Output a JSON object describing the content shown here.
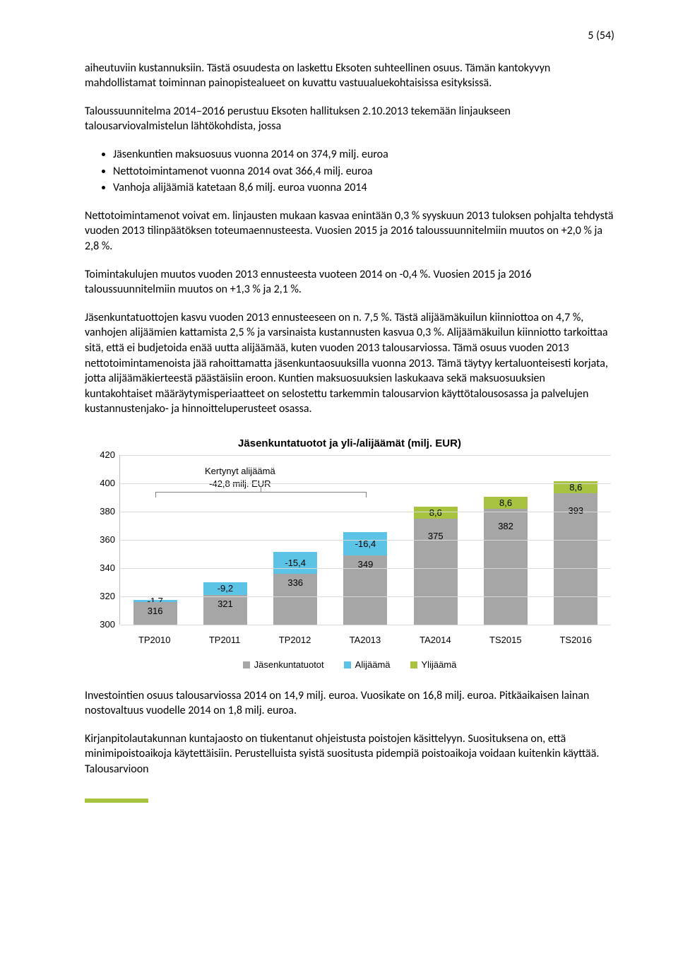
{
  "pageNumber": "5 (54)",
  "paragraphs": {
    "p1": "aiheutuviin kustannuksiin. Tästä osuudesta on laskettu Eksoten suhteellinen osuus. Tämän kantokyvyn mahdollistamat toiminnan painopistealueet on kuvattu vastuualuekohtaisissa esityksissä.",
    "p2": "Taloussuunnitelma 2014–2016 perustuu Eksoten hallituksen 2.10.2013 tekemään linjaukseen talousarviovalmistelun lähtökohdista, jossa",
    "p3": "Nettotoimintamenot voivat em. linjausten mukaan kasvaa enintään 0,3 % syyskuun 2013 tuloksen pohjalta tehdystä vuoden 2013 tilinpäätöksen toteumaennusteesta. Vuosien 2015 ja 2016 taloussuunnitelmiin muutos on +2,0 % ja 2,8 %.",
    "p4": "Toimintakulujen muutos vuoden 2013 ennusteesta vuoteen 2014 on -0,4 %. Vuosien 2015 ja 2016 taloussuunnitelmiin muutos on +1,3 % ja 2,1 %.",
    "p5": "Jäsenkuntatuottojen kasvu vuoden 2013 ennusteeseen on n. 7,5 %. Tästä alijäämäkuilun kiinniottoa on 4,7 %, vanhojen alijäämien kattamista 2,5 % ja varsinaista kustannusten kasvua 0,3 %. Alijäämäkuilun kiinniotto tarkoittaa sitä, että ei budjetoida enää uutta alijäämää, kuten vuoden 2013 talousarviossa. Tämä osuus vuoden 2013 nettotoimintamenoista jää rahoittamatta jäsenkuntaosuuksilla vuonna 2013. Tämä täytyy kertaluonteisesti korjata, jotta alijäämäkierteestä päästäisiin eroon. Kuntien maksuosuuksien laskukaava sekä maksuosuuksien kuntakohtaiset määräytymisperiaatteet on selostettu tarkemmin talousarvion käyttötalousosassa ja palvelujen kustannustenjako- ja hinnoitteluperusteet osassa.",
    "p6": "Investointien osuus talousarviossa 2014 on 14,9 milj. euroa. Vuosikate on 16,8 milj. euroa. Pitkäaikaisen lainan nostovaltuus vuodelle 2014 on 1,8 milj. euroa.",
    "p7": "Kirjanpitolautakunnan kuntajaosto on tiukentanut ohjeistusta poistojen käsittelyyn. Suosituksena on, että minimipoistoaikoja käytettäisiin. Perustelluista syistä suositusta pidempiä poistoaikoja voidaan kuitenkin käyttää. Talousarvioon"
  },
  "bullets": {
    "b1": "Jäsenkuntien maksuosuus vuonna 2014 on 374,9 milj. euroa",
    "b2": "Nettotoimintamenot vuonna 2014 ovat 366,4 milj. euroa",
    "b3": "Vanhoja alijäämiä katetaan 8,6 milj. euroa vuonna 2014"
  },
  "chart": {
    "title": "Jäsenkuntatuotot ja yli-/alijäämät (milj. EUR)",
    "ylim": [
      300,
      420
    ],
    "yticks": [
      300,
      320,
      340,
      360,
      380,
      400,
      420
    ],
    "categories": [
      "TP2010",
      "TP2011",
      "TP2012",
      "TA2013",
      "TA2014",
      "TS2015",
      "TS2016"
    ],
    "colors": {
      "tuotot": "#a6a6a6",
      "alijaama": "#5bc3e5",
      "ylijaama": "#a7c33f",
      "grid": "#d9d9d9",
      "axis": "#bfbfbf",
      "background": "#ffffff"
    },
    "annotation": {
      "l1": "Kertynyt alijäämä",
      "l2": "-42,8 milj. EUR"
    },
    "series": [
      {
        "tuotot": 316,
        "tuotot_label": "316",
        "overlay": -1.7,
        "overlay_label": "-1,7",
        "overlay_color": "#5bc3e5"
      },
      {
        "tuotot": 321,
        "tuotot_label": "321",
        "overlay": -9.2,
        "overlay_label": "-9,2",
        "overlay_color": "#5bc3e5"
      },
      {
        "tuotot": 336,
        "tuotot_label": "336",
        "overlay": -15.4,
        "overlay_label": "-15,4",
        "overlay_color": "#5bc3e5"
      },
      {
        "tuotot": 349,
        "tuotot_label": "349",
        "overlay": -16.4,
        "overlay_label": "-16,4",
        "overlay_color": "#5bc3e5"
      },
      {
        "tuotot": 375,
        "tuotot_label": "375",
        "overlay": 8.6,
        "overlay_label": "8,6",
        "overlay_color": "#a7c33f"
      },
      {
        "tuotot": 382,
        "tuotot_label": "382",
        "overlay": 8.6,
        "overlay_label": "8,6",
        "overlay_color": "#a7c33f"
      },
      {
        "tuotot": 393,
        "tuotot_label": "393",
        "overlay": 8.6,
        "overlay_label": "8,6",
        "overlay_color": "#a7c33f"
      }
    ],
    "legend": {
      "tuotot": "Jäsenkuntatuotot",
      "alijaama": "Alijäämä",
      "ylijaama": "Ylijäämä"
    }
  }
}
